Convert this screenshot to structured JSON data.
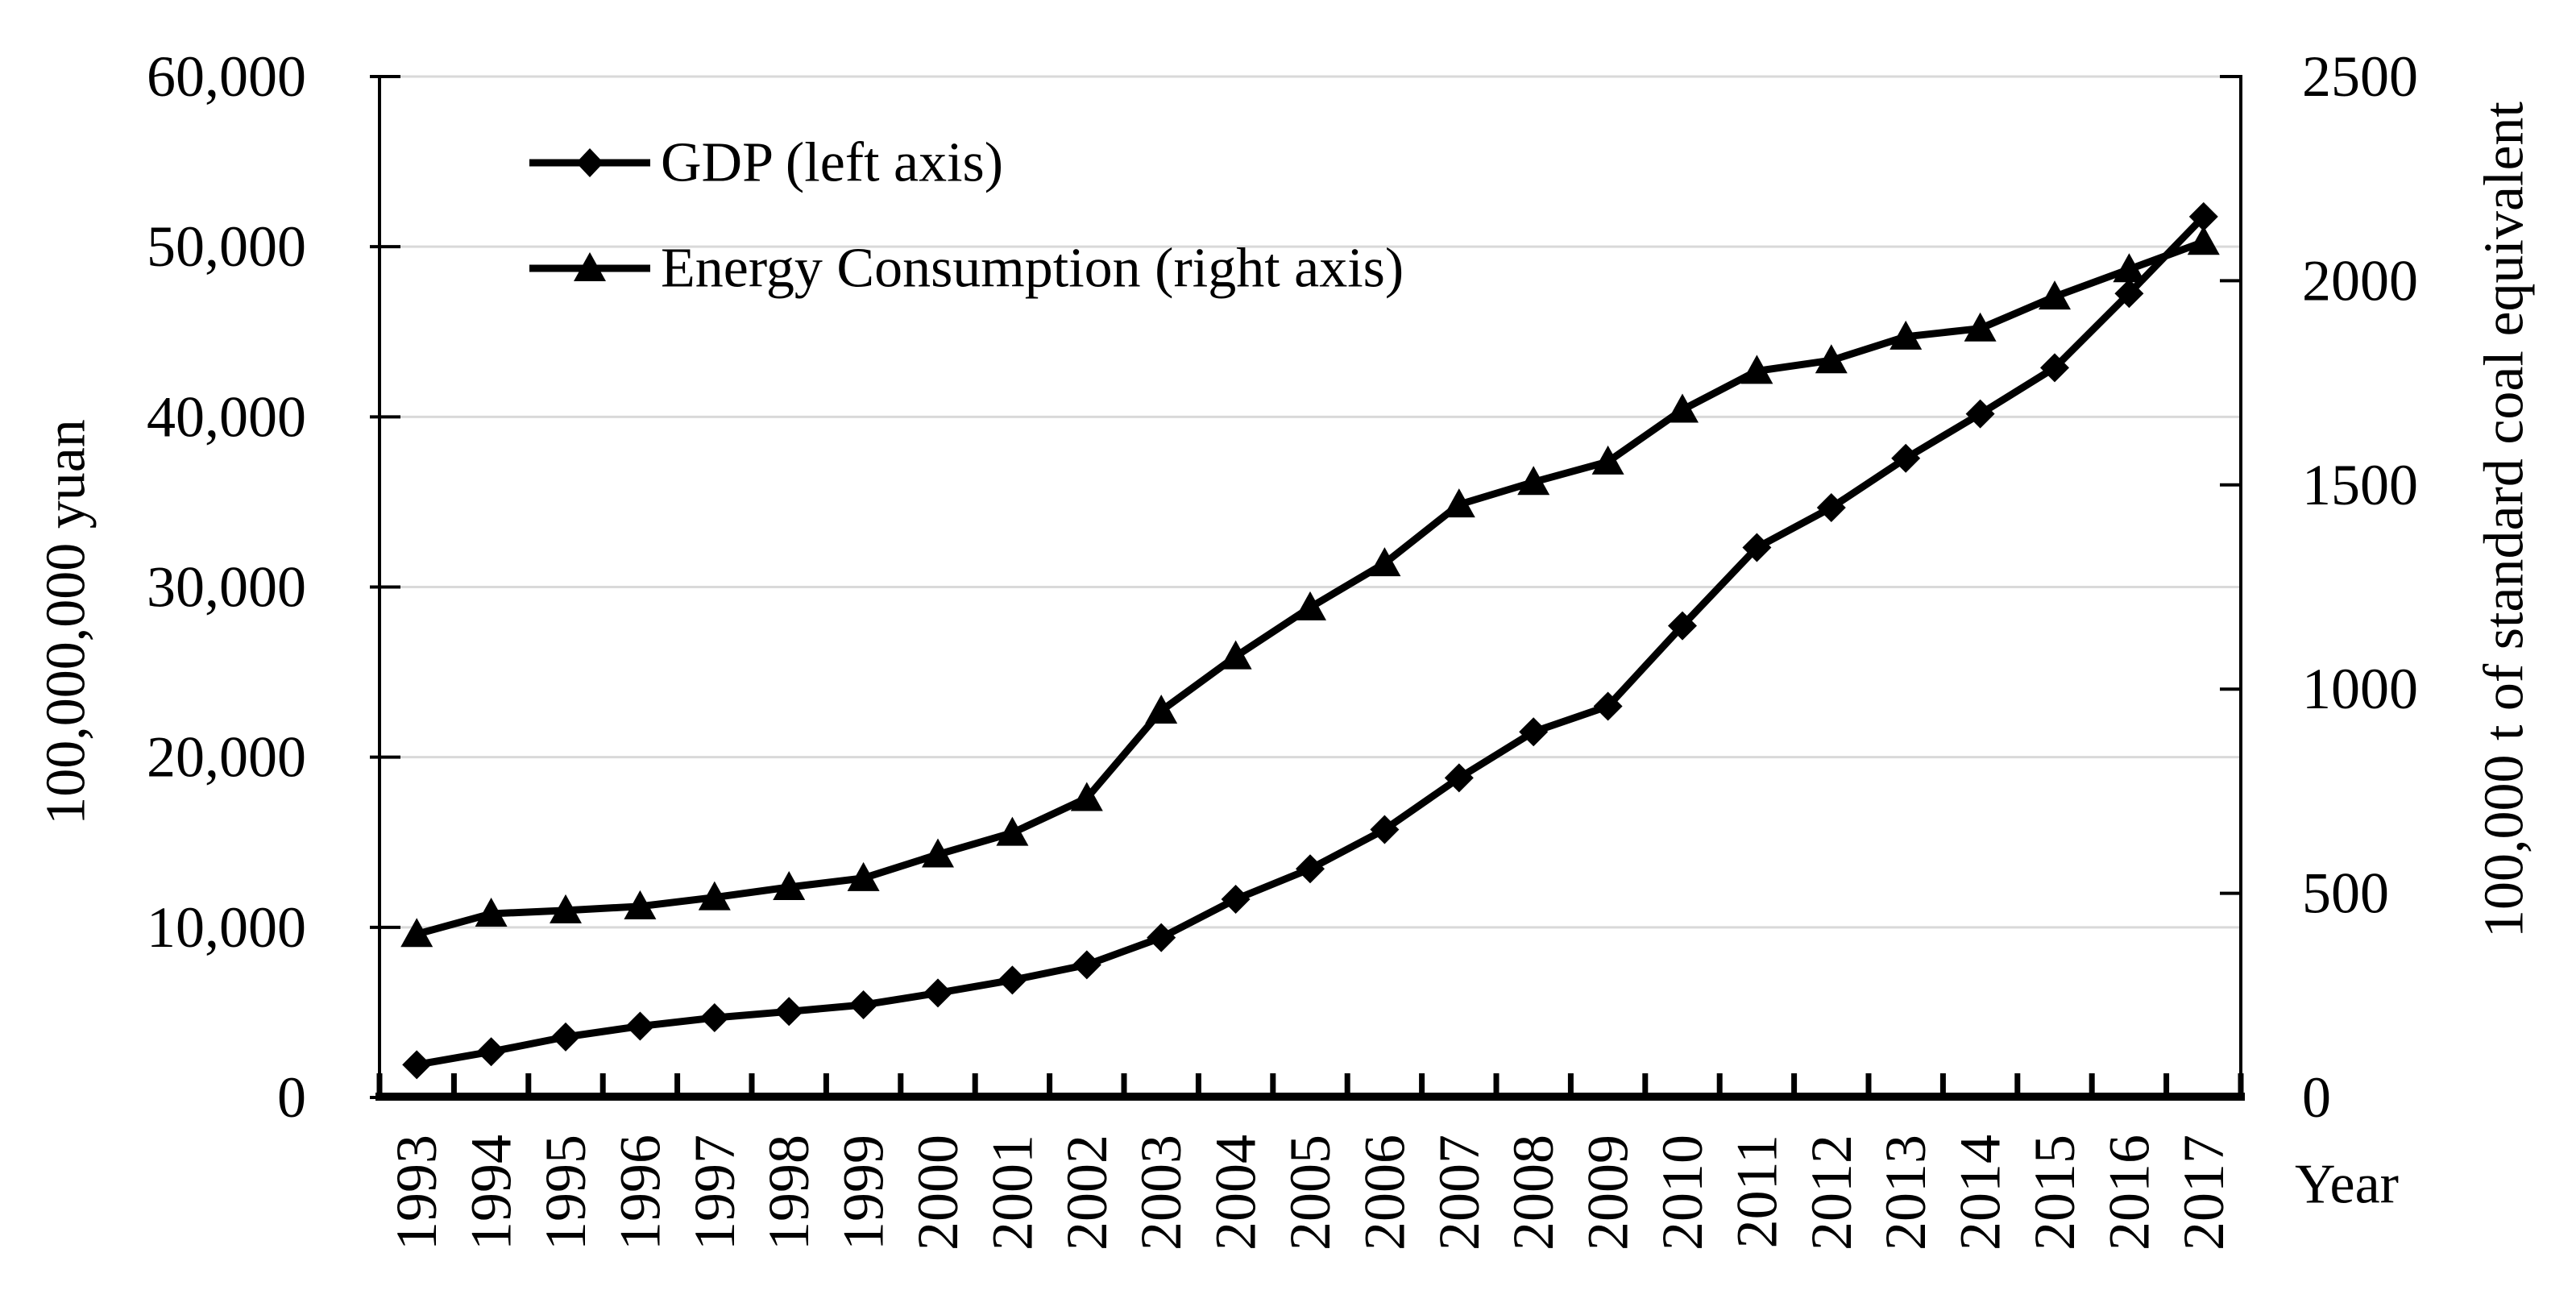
{
  "chart_data": {
    "type": "line",
    "title": "",
    "x_axis": {
      "title": "Year",
      "categories": [
        "1993",
        "1994",
        "1995",
        "1996",
        "1997",
        "1998",
        "1999",
        "2000",
        "2001",
        "2002",
        "2003",
        "2004",
        "2005",
        "2006",
        "2007",
        "2008",
        "2009",
        "2010",
        "2011",
        "2012",
        "2013",
        "2014",
        "2015",
        "2016",
        "2017"
      ]
    },
    "left_axis": {
      "title": "100,000,000 yuan",
      "min": 0,
      "max": 60000,
      "tick_values": [
        0,
        10000,
        20000,
        30000,
        40000,
        50000,
        60000
      ],
      "tick_labels": [
        "0",
        "10,000",
        "20,000",
        "30,000",
        "40,000",
        "50,000",
        "60,000"
      ]
    },
    "right_axis": {
      "title": "100,000 t of standard coal equivalent",
      "min": 0,
      "max": 2500,
      "tick_values": [
        0,
        500,
        1000,
        1500,
        2000,
        2500
      ],
      "tick_labels": [
        "0",
        "500",
        "1000",
        "1500",
        "2000",
        "2500"
      ]
    },
    "series": [
      {
        "name": "GDP (left axis)",
        "axis": "left",
        "marker": "diamond",
        "color": "#000000",
        "values": [
          1926,
          2689,
          3558,
          4189,
          4686,
          5053,
          5444,
          6141,
          6898,
          7796,
          9395,
          11649,
          13438,
          15743,
          18780,
          21487,
          22990,
          27722,
          32319,
          34665,
          37568,
          40173,
          42886,
          47251,
          51768
        ]
      },
      {
        "name": "Energy Consumption (right axis)",
        "axis": "right",
        "marker": "triangle",
        "color": "#000000",
        "values": [
          400,
          450,
          458,
          468,
          490,
          515,
          537,
          595,
          648,
          733,
          947,
          1080,
          1200,
          1308,
          1452,
          1507,
          1557,
          1684,
          1779,
          1805,
          1863,
          1883,
          1961,
          2028,
          2095
        ]
      }
    ],
    "grid": true,
    "grid_color": "#d9d9d9",
    "axis_color": "#000000",
    "legend_position": "inside-top-left"
  }
}
